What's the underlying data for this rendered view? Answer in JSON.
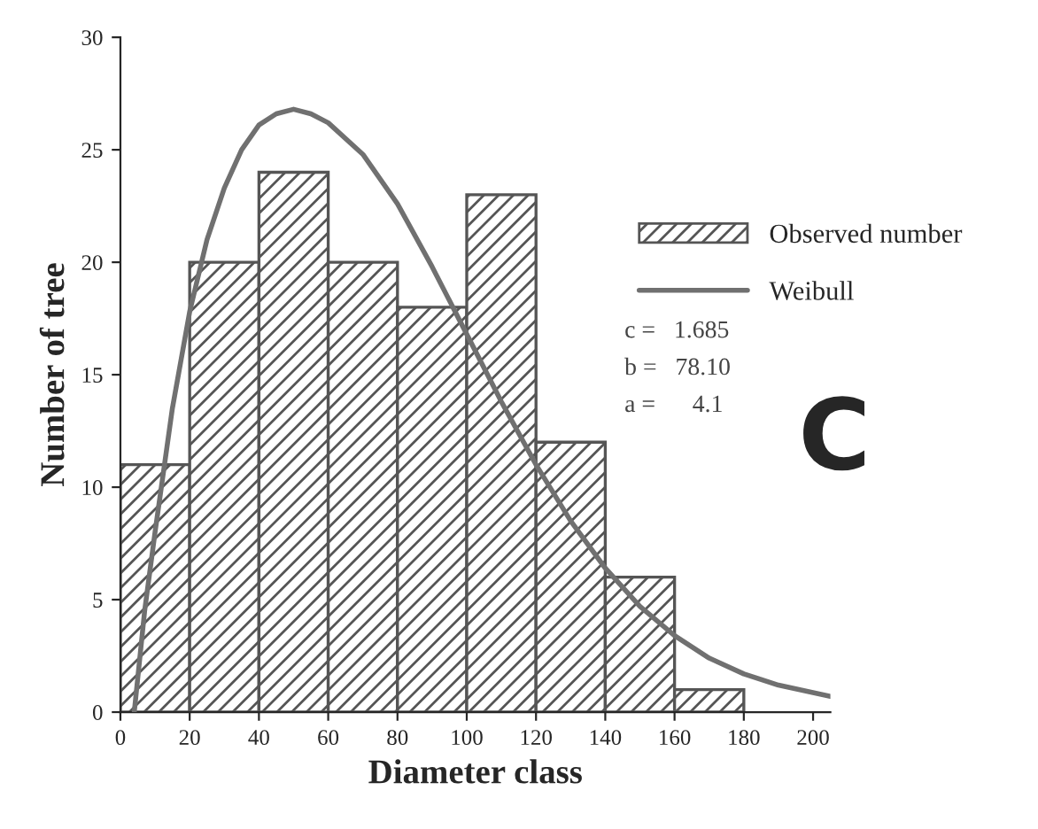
{
  "chart_data": {
    "type": "histogram",
    "xlabel": "Diameter class",
    "ylabel": "Number of tree",
    "xlim": [
      0,
      205
    ],
    "xticks": [
      0,
      20,
      40,
      60,
      80,
      100,
      120,
      140,
      160,
      180,
      200
    ],
    "ylim": [
      0,
      30
    ],
    "yticks": [
      0,
      5,
      10,
      15,
      20,
      25,
      30
    ],
    "grid": false,
    "legend": "right",
    "series": [
      {
        "name": "Observed number",
        "color": "#555555",
        "bins": [
          0,
          20,
          40,
          60,
          80,
          100,
          120,
          140,
          160,
          180
        ],
        "values": [
          11,
          20,
          24,
          20,
          18,
          23,
          12,
          6,
          1
        ]
      },
      {
        "name": "Weibull",
        "type": "line",
        "color": "#707070",
        "x": [
          4,
          7,
          10,
          15,
          20,
          25,
          30,
          35,
          40,
          45,
          50,
          55,
          60,
          70,
          80,
          90,
          100,
          110,
          120,
          130,
          140,
          150,
          160,
          170,
          180,
          190,
          205
        ],
        "values": [
          0,
          4.5,
          8,
          13.5,
          17.8,
          21,
          23.3,
          25,
          26.1,
          26.6,
          26.8,
          26.6,
          26.2,
          24.8,
          22.6,
          19.8,
          16.8,
          13.8,
          11,
          8.5,
          6.4,
          4.7,
          3.4,
          2.4,
          1.7,
          1.2,
          0.7
        ]
      }
    ],
    "annotations": [
      "c =   1.685",
      "b =   78.10",
      "a =      4.1",
      "C"
    ]
  }
}
